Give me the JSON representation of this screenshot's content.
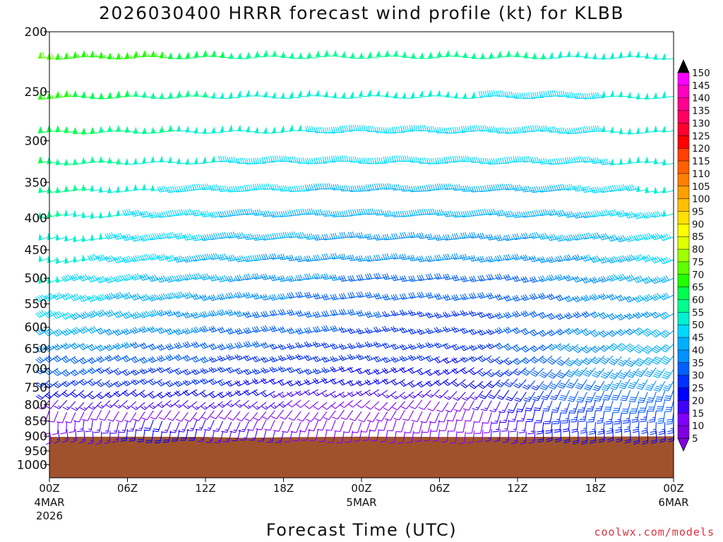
{
  "chart_data": {
    "type": "wind-barb-profile",
    "title": "2026030400 HRRR forecast wind profile (kt) for KLBB",
    "xlabel": "Forecast Time (UTC)",
    "ylabel": "",
    "credit": "coolwx.com/models",
    "x_range_hours": [
      0,
      48
    ],
    "y_range_hpa": [
      200,
      1050
    ],
    "y_scale": "log-pressure",
    "x_ticks": [
      {
        "hour": 0,
        "label": "00Z",
        "sub": [
          "4MAR",
          "2026"
        ]
      },
      {
        "hour": 6,
        "label": "06Z",
        "sub": []
      },
      {
        "hour": 12,
        "label": "12Z",
        "sub": []
      },
      {
        "hour": 18,
        "label": "18Z",
        "sub": []
      },
      {
        "hour": 24,
        "label": "00Z",
        "sub": [
          "5MAR"
        ]
      },
      {
        "hour": 30,
        "label": "06Z",
        "sub": []
      },
      {
        "hour": 36,
        "label": "12Z",
        "sub": []
      },
      {
        "hour": 42,
        "label": "18Z",
        "sub": []
      },
      {
        "hour": 48,
        "label": "00Z",
        "sub": [
          "6MAR"
        ]
      }
    ],
    "y_ticks": [
      200,
      250,
      300,
      350,
      400,
      450,
      500,
      550,
      600,
      650,
      700,
      750,
      800,
      850,
      900,
      950,
      1000
    ],
    "surface_pressure_hpa": [
      [
        0,
        902
      ],
      [
        6,
        901
      ],
      [
        12,
        902
      ],
      [
        15,
        905
      ],
      [
        18,
        903
      ],
      [
        21,
        902
      ],
      [
        24,
        901
      ],
      [
        30,
        902
      ],
      [
        36,
        902
      ],
      [
        42,
        901
      ],
      [
        48,
        900
      ]
    ],
    "surface_color": "#a0522d",
    "profile_levels_hpa": [
      220,
      255,
      290,
      325,
      360,
      395,
      430,
      465,
      500,
      535,
      570,
      605,
      640,
      670,
      700,
      730,
      760,
      790,
      820,
      850,
      880
    ],
    "wind_speed_kt_by_level": [
      [
        68,
        64,
        56,
        54,
        55,
        52,
        52
      ],
      [
        65,
        56,
        50,
        48,
        48,
        45,
        52
      ],
      [
        62,
        54,
        48,
        47,
        47,
        45,
        52
      ],
      [
        58,
        51,
        46,
        45,
        45,
        44,
        52
      ],
      [
        56,
        48,
        43,
        42,
        42,
        42,
        50
      ],
      [
        54,
        46,
        41,
        39,
        38,
        40,
        48
      ],
      [
        52,
        45,
        40,
        36,
        36,
        38,
        45
      ],
      [
        50,
        44,
        38,
        34,
        33,
        35,
        45
      ],
      [
        49,
        42,
        36,
        32,
        30,
        33,
        42
      ],
      [
        47,
        40,
        34,
        30,
        28,
        32,
        40
      ],
      [
        44,
        38,
        32,
        28,
        26,
        30,
        38
      ],
      [
        40,
        35,
        30,
        27,
        25,
        32,
        40
      ],
      [
        36,
        32,
        28,
        25,
        23,
        34,
        42
      ],
      [
        32,
        30,
        26,
        24,
        22,
        32,
        40
      ],
      [
        28,
        27,
        24,
        22,
        20,
        32,
        38
      ],
      [
        24,
        24,
        22,
        20,
        18,
        30,
        36
      ],
      [
        18,
        20,
        18,
        15,
        14,
        28,
        32
      ],
      [
        12,
        15,
        14,
        10,
        10,
        26,
        30
      ],
      [
        10,
        12,
        10,
        8,
        8,
        24,
        28
      ],
      [
        10,
        18,
        12,
        8,
        8,
        22,
        26
      ],
      [
        12,
        20,
        14,
        8,
        10,
        20,
        22
      ]
    ],
    "wind_dir_deg_by_level": [
      [
        265,
        268,
        270,
        272,
        270,
        268,
        265
      ],
      [
        265,
        268,
        270,
        272,
        270,
        268,
        265
      ],
      [
        262,
        266,
        268,
        270,
        268,
        266,
        262
      ],
      [
        260,
        265,
        268,
        270,
        268,
        265,
        260
      ],
      [
        258,
        262,
        266,
        268,
        266,
        262,
        258
      ],
      [
        255,
        260,
        264,
        266,
        264,
        260,
        255
      ],
      [
        252,
        258,
        262,
        264,
        262,
        258,
        252
      ],
      [
        250,
        256,
        260,
        262,
        260,
        255,
        250
      ],
      [
        248,
        254,
        258,
        260,
        258,
        252,
        248
      ],
      [
        245,
        252,
        256,
        258,
        255,
        248,
        245
      ],
      [
        242,
        250,
        254,
        256,
        252,
        244,
        240
      ],
      [
        240,
        248,
        252,
        254,
        250,
        238,
        232
      ],
      [
        238,
        246,
        250,
        252,
        246,
        232,
        226
      ],
      [
        236,
        244,
        248,
        250,
        242,
        226,
        220
      ],
      [
        234,
        242,
        246,
        248,
        238,
        220,
        214
      ],
      [
        232,
        240,
        244,
        246,
        232,
        214,
        208
      ],
      [
        228,
        236,
        240,
        240,
        222,
        206,
        200
      ],
      [
        220,
        230,
        232,
        230,
        210,
        198,
        194
      ],
      [
        200,
        215,
        220,
        215,
        200,
        190,
        188
      ],
      [
        180,
        200,
        205,
        200,
        192,
        185,
        182
      ],
      [
        170,
        190,
        195,
        190,
        185,
        180,
        178
      ]
    ],
    "anchor_hours": [
      0,
      8,
      16,
      24,
      32,
      40,
      48
    ],
    "colorbar": {
      "min": 5,
      "max": 150,
      "step": 5,
      "labels": [
        "150",
        "145",
        "140",
        "135",
        "130",
        "125",
        "120",
        "115",
        "110",
        "105",
        "100",
        "95",
        "90",
        "85",
        "80",
        "75",
        "70",
        "65",
        "60",
        "55",
        "50",
        "45",
        "40",
        "35",
        "30",
        "25",
        "20",
        "15",
        "10",
        "5"
      ],
      "colors": {
        "5": "#8000e0",
        "10": "#8000ff",
        "15": "#4000ff",
        "20": "#0000ff",
        "25": "#0030ff",
        "30": "#0060ff",
        "35": "#0090ff",
        "40": "#00b0ff",
        "45": "#00d8ff",
        "50": "#00f0d0",
        "55": "#00ff90",
        "60": "#00ff50",
        "65": "#20ff00",
        "70": "#60ff00",
        "75": "#a0ff00",
        "80": "#e0ff00",
        "85": "#ffff00",
        "90": "#ffe000",
        "95": "#ffc000",
        "100": "#ffa000",
        "105": "#ff8000",
        "110": "#ff6000",
        "115": "#ff4000",
        "120": "#ff0000",
        "125": "#ff0030",
        "130": "#ff0060",
        "135": "#ff0090",
        "140": "#ff00c0",
        "145": "#ff00ff",
        "150": "#000000"
      }
    }
  }
}
